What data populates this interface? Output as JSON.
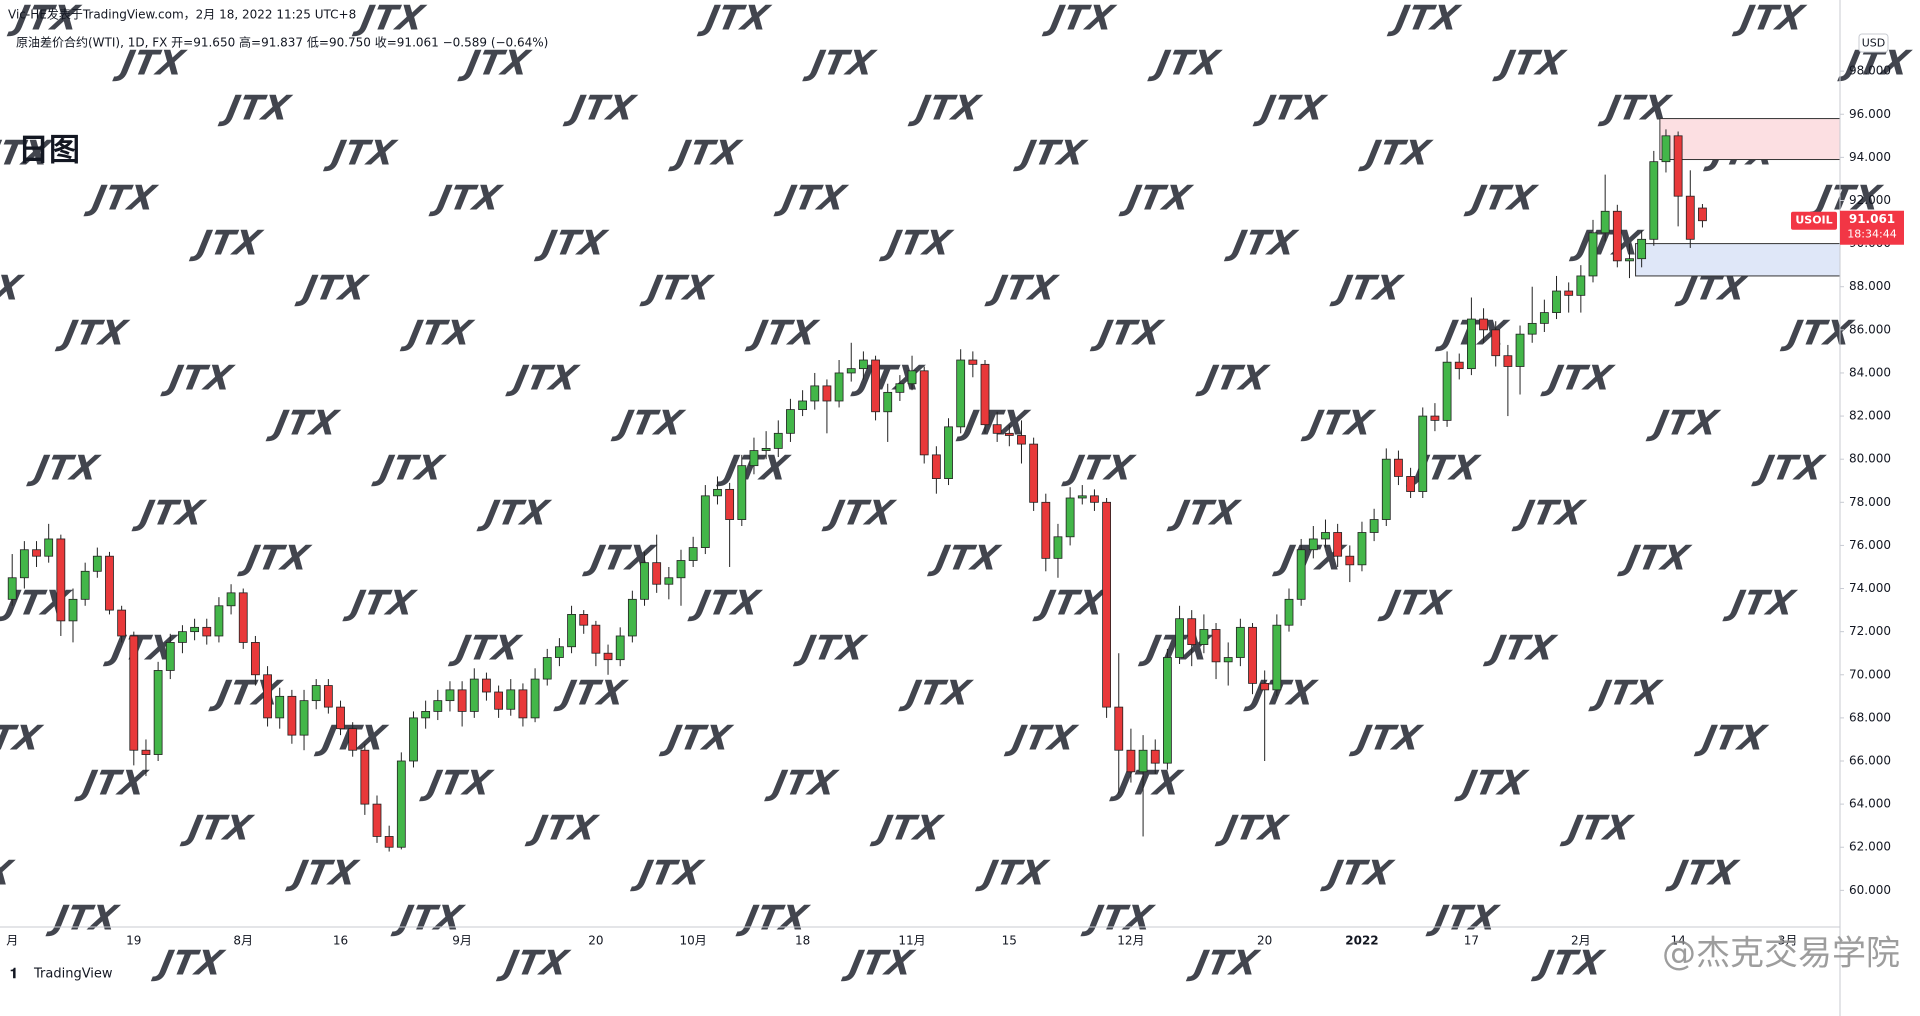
{
  "chart_data": {
    "type": "candlestick",
    "title": "Vic-HE发表于TradingView.com，2月 18, 2022 11:25 UTC+8",
    "subtitle": "原油差价合约(WTI), 1D, FX  开=91.650  高=91.837  低=90.750  收=91.061  −0.589 (−0.64%)",
    "annotation": "日图",
    "currency": "USD",
    "symbol": "USOIL",
    "countdown": "18:34:44",
    "brand": "TradingView",
    "credit": "@杰克交易学院",
    "watermark": "JTX",
    "up_color": "#43b649",
    "down_color": "#e8393a",
    "ylim": [
      58.3,
      101.3
    ],
    "yticks": [
      {
        "value": 60,
        "label": "60.000"
      },
      {
        "value": 62,
        "label": "62.000"
      },
      {
        "value": 64,
        "label": "64.000"
      },
      {
        "value": 66,
        "label": "66.000"
      },
      {
        "value": 68,
        "label": "68.000"
      },
      {
        "value": 70,
        "label": "70.000"
      },
      {
        "value": 72,
        "label": "72.000"
      },
      {
        "value": 74,
        "label": "74.000"
      },
      {
        "value": 76,
        "label": "76.000"
      },
      {
        "value": 78,
        "label": "78.000"
      },
      {
        "value": 80,
        "label": "80.000"
      },
      {
        "value": 82,
        "label": "82.000"
      },
      {
        "value": 84,
        "label": "84.000"
      },
      {
        "value": 86,
        "label": "86.000"
      },
      {
        "value": 88,
        "label": "88.000"
      },
      {
        "value": 90,
        "label": "90.000"
      },
      {
        "value": 92,
        "label": "92.000"
      },
      {
        "value": 94,
        "label": "94.000"
      },
      {
        "value": 96,
        "label": "96.000"
      },
      {
        "value": 98,
        "label": "98.000"
      }
    ],
    "xticks": [
      {
        "value": 0,
        "label": "月"
      },
      {
        "value": 10,
        "label": "19"
      },
      {
        "value": 19,
        "label": "8月"
      },
      {
        "value": 27,
        "label": "16"
      },
      {
        "value": 37,
        "label": "9月"
      },
      {
        "value": 48,
        "label": "20"
      },
      {
        "value": 56,
        "label": "10月"
      },
      {
        "value": 65,
        "label": "18"
      },
      {
        "value": 74,
        "label": "11月"
      },
      {
        "value": 82,
        "label": "15"
      },
      {
        "value": 92,
        "label": "12月"
      },
      {
        "value": 103,
        "label": "20"
      },
      {
        "value": 111,
        "label": "2022",
        "bold": true
      },
      {
        "value": 120,
        "label": "17"
      },
      {
        "value": 129,
        "label": "2月"
      },
      {
        "value": 137,
        "label": "14"
      },
      {
        "value": 146,
        "label": "3月"
      }
    ],
    "zones": [
      {
        "start": 136,
        "ylim": [
          93.9,
          95.8
        ],
        "color": "#fcdfe2"
      },
      {
        "start": 134,
        "ylim": [
          88.5,
          90.0
        ],
        "color": "#dfe7f8"
      }
    ],
    "candles": [
      [
        73.5,
        75.6,
        73.2,
        74.5
      ],
      [
        74.5,
        76.2,
        74,
        75.8
      ],
      [
        75.8,
        76.2,
        75,
        75.5
      ],
      [
        75.5,
        77,
        75.2,
        76.3
      ],
      [
        76.3,
        76.5,
        71.8,
        72.5
      ],
      [
        72.5,
        74,
        71.5,
        73.5
      ],
      [
        73.5,
        75.2,
        73.2,
        74.8
      ],
      [
        74.8,
        75.9,
        74.5,
        75.5
      ],
      [
        75.5,
        75.7,
        72.8,
        73
      ],
      [
        73,
        73.2,
        71.5,
        71.8
      ],
      [
        71.8,
        72,
        65.8,
        66.5
      ],
      [
        66.5,
        67,
        65.3,
        66.3
      ],
      [
        66.3,
        70.6,
        66,
        70.2
      ],
      [
        70.2,
        71.9,
        69.8,
        71.5
      ],
      [
        71.5,
        72.3,
        71,
        72
      ],
      [
        72,
        72.6,
        71.6,
        72.2
      ],
      [
        72.2,
        72.6,
        71.4,
        71.8
      ],
      [
        71.8,
        73.6,
        71.5,
        73.2
      ],
      [
        73.2,
        74.2,
        72.8,
        73.8
      ],
      [
        73.8,
        74,
        71.2,
        71.5
      ],
      [
        71.5,
        71.8,
        69.5,
        70
      ],
      [
        70,
        70.4,
        67.6,
        68
      ],
      [
        68,
        69.4,
        67.5,
        69
      ],
      [
        69,
        69.3,
        66.8,
        67.2
      ],
      [
        67.2,
        69.3,
        66.5,
        68.8
      ],
      [
        68.8,
        69.8,
        68.4,
        69.5
      ],
      [
        69.5,
        69.8,
        68.2,
        68.5
      ],
      [
        68.5,
        68.8,
        67.2,
        67.5
      ],
      [
        67.5,
        67.8,
        66.2,
        66.5
      ],
      [
        66.5,
        66.8,
        63.5,
        64
      ],
      [
        64,
        64.4,
        62.2,
        62.5
      ],
      [
        62.5,
        63,
        61.8,
        62
      ],
      [
        62,
        66.4,
        61.9,
        66
      ],
      [
        66,
        68.3,
        65.7,
        68
      ],
      [
        68,
        68.8,
        67.5,
        68.3
      ],
      [
        68.3,
        69.3,
        67.9,
        68.8
      ],
      [
        68.8,
        69.7,
        68.3,
        69.3
      ],
      [
        69.3,
        69.7,
        67.6,
        68.3
      ],
      [
        68.3,
        70.3,
        68,
        69.8
      ],
      [
        69.8,
        70.1,
        68.8,
        69.2
      ],
      [
        69.2,
        69.5,
        68,
        68.4
      ],
      [
        68.4,
        69.8,
        68.1,
        69.3
      ],
      [
        69.3,
        69.6,
        67.6,
        68
      ],
      [
        68,
        70.3,
        67.8,
        69.8
      ],
      [
        69.8,
        71.2,
        69.5,
        70.8
      ],
      [
        70.8,
        71.7,
        70.4,
        71.3
      ],
      [
        71.3,
        73.2,
        71,
        72.8
      ],
      [
        72.8,
        73,
        71.9,
        72.3
      ],
      [
        72.3,
        72.5,
        70.4,
        71
      ],
      [
        71,
        71.4,
        70,
        70.7
      ],
      [
        70.7,
        72.2,
        70.4,
        71.8
      ],
      [
        71.8,
        73.9,
        71.5,
        73.5
      ],
      [
        73.5,
        75.7,
        73.2,
        75.2
      ],
      [
        75.2,
        76.5,
        73.8,
        74.2
      ],
      [
        74.2,
        75,
        73.5,
        74.5
      ],
      [
        74.5,
        75.8,
        73.2,
        75.3
      ],
      [
        75.3,
        76.4,
        75,
        75.9
      ],
      [
        75.9,
        78.8,
        75.6,
        78.3
      ],
      [
        78.3,
        79.2,
        77.9,
        78.6
      ],
      [
        78.6,
        78.9,
        75,
        77.2
      ],
      [
        77.2,
        80.2,
        76.9,
        79.7
      ],
      [
        79.7,
        81,
        79.3,
        80.4
      ],
      [
        80.4,
        81.3,
        80,
        80.5
      ],
      [
        80.5,
        81.8,
        80.1,
        81.2
      ],
      [
        81.2,
        82.8,
        80.8,
        82.3
      ],
      [
        82.3,
        83.2,
        82,
        82.7
      ],
      [
        82.7,
        84,
        82.3,
        83.4
      ],
      [
        83.4,
        83.7,
        81.2,
        82.7
      ],
      [
        82.7,
        84.6,
        82.4,
        84
      ],
      [
        84,
        85.4,
        83.6,
        84.2
      ],
      [
        84.2,
        85,
        83.7,
        84.6
      ],
      [
        84.6,
        84.8,
        81.8,
        82.2
      ],
      [
        82.2,
        83.5,
        80.8,
        83.1
      ],
      [
        83.1,
        83.9,
        82.7,
        83.5
      ],
      [
        83.5,
        84.8,
        83.2,
        84.1
      ],
      [
        84.1,
        84.3,
        79.8,
        80.2
      ],
      [
        80.2,
        80.6,
        78.4,
        79.1
      ],
      [
        79.1,
        81.9,
        78.8,
        81.5
      ],
      [
        81.5,
        85.1,
        81.2,
        84.6
      ],
      [
        84.6,
        85,
        83.8,
        84.4
      ],
      [
        84.4,
        84.6,
        81.2,
        81.6
      ],
      [
        81.6,
        82.2,
        80.8,
        81.2
      ],
      [
        81.2,
        81.6,
        80.6,
        81.1
      ],
      [
        81.1,
        81.8,
        79.8,
        80.7
      ],
      [
        80.7,
        81,
        77.6,
        78
      ],
      [
        78,
        78.4,
        74.8,
        75.4
      ],
      [
        75.4,
        77,
        74.5,
        76.4
      ],
      [
        76.4,
        78.7,
        76,
        78.2
      ],
      [
        78.2,
        78.8,
        77.9,
        78.3
      ],
      [
        78.3,
        78.6,
        77.6,
        78
      ],
      [
        78,
        78.2,
        68,
        68.5
      ],
      [
        68.5,
        71,
        64.5,
        66.5
      ],
      [
        66.5,
        67.5,
        65,
        65.5
      ],
      [
        65.5,
        67.2,
        62.5,
        66.5
      ],
      [
        66.5,
        67,
        65.4,
        65.9
      ],
      [
        65.9,
        71.2,
        65.6,
        70.8
      ],
      [
        70.8,
        73.2,
        70.5,
        72.6
      ],
      [
        72.6,
        73,
        70.4,
        71.4
      ],
      [
        71.4,
        72.8,
        71,
        72.1
      ],
      [
        72.1,
        72.4,
        69.8,
        70.6
      ],
      [
        70.6,
        71.5,
        69.5,
        70.8
      ],
      [
        70.8,
        72.6,
        70.4,
        72.2
      ],
      [
        72.2,
        72.4,
        69.1,
        69.6
      ],
      [
        69.6,
        70.2,
        66,
        69.3
      ],
      [
        69.3,
        72.8,
        69,
        72.3
      ],
      [
        72.3,
        74,
        72,
        73.5
      ],
      [
        73.5,
        76.3,
        73.2,
        75.8
      ],
      [
        75.8,
        76.9,
        75.4,
        76.3
      ],
      [
        76.3,
        77.2,
        75.9,
        76.6
      ],
      [
        76.6,
        77,
        75,
        75.5
      ],
      [
        75.5,
        76,
        74.3,
        75.1
      ],
      [
        75.1,
        77.1,
        74.8,
        76.6
      ],
      [
        76.6,
        77.7,
        76.2,
        77.2
      ],
      [
        77.2,
        80.5,
        76.9,
        80
      ],
      [
        80,
        80.4,
        78.8,
        79.2
      ],
      [
        79.2,
        79.6,
        78.2,
        78.5
      ],
      [
        78.5,
        82.4,
        78.2,
        82
      ],
      [
        82,
        82.6,
        81.3,
        81.8
      ],
      [
        81.8,
        85,
        81.5,
        84.5
      ],
      [
        84.5,
        84.9,
        83.7,
        84.2
      ],
      [
        84.2,
        87.5,
        83.9,
        86.5
      ],
      [
        86.5,
        87,
        85.4,
        86
      ],
      [
        86,
        86.4,
        84.3,
        84.8
      ],
      [
        84.8,
        85.3,
        82,
        84.3
      ],
      [
        84.3,
        86.2,
        83,
        85.8
      ],
      [
        85.8,
        88,
        85.4,
        86.3
      ],
      [
        86.3,
        87.4,
        85.9,
        86.8
      ],
      [
        86.8,
        88.5,
        86.5,
        87.8
      ],
      [
        87.8,
        88.2,
        86.8,
        87.6
      ],
      [
        87.6,
        89,
        86.8,
        88.5
      ],
      [
        88.5,
        91.1,
        88.2,
        90.5
      ],
      [
        90.5,
        93.2,
        90.1,
        91.5
      ],
      [
        91.5,
        91.8,
        88.9,
        89.2
      ],
      [
        89.2,
        90,
        88.4,
        89.3
      ],
      [
        89.3,
        90.6,
        88.9,
        90.2
      ],
      [
        90.2,
        94.3,
        89.9,
        93.8
      ],
      [
        93.8,
        95.3,
        93.3,
        95
      ],
      [
        95,
        95.2,
        90.8,
        92.2
      ],
      [
        92.2,
        93.4,
        89.8,
        90.2
      ],
      [
        91.65,
        91.837,
        90.75,
        91.061
      ]
    ]
  }
}
